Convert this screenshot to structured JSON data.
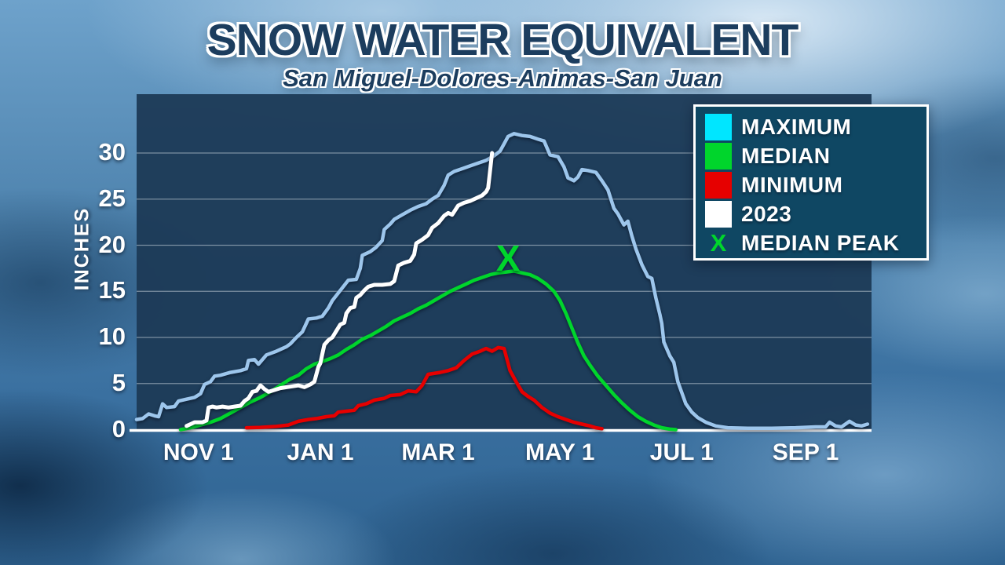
{
  "title": "SNOW WATER EQUIVALENT",
  "subtitle": "San Miguel-Dolores-Animas-San Juan",
  "colors": {
    "title_text": "#1c3d5e",
    "plot_background": "#1c3a56",
    "gridline": "#c9d4dd",
    "axis_baseline": "#ffffff",
    "legend_background": "#0f4763",
    "legend_border": "#ffffff",
    "maximum_swatch": "#00e6ff",
    "maximum_line": "#9dc6ec",
    "median": "#00d52c",
    "minimum": "#e60000",
    "year_2023": "#ffffff"
  },
  "legend": {
    "items": [
      {
        "label": "MAXIMUM",
        "swatch": "square",
        "color": "#00e6ff"
      },
      {
        "label": "MEDIAN",
        "swatch": "square",
        "color": "#00d52c"
      },
      {
        "label": "MINIMUM",
        "swatch": "square",
        "color": "#e60000"
      },
      {
        "label": "2023",
        "swatch": "square",
        "color": "#ffffff"
      },
      {
        "label": "MEDIAN PEAK",
        "swatch": "x",
        "symbol": "X",
        "color": "#00d52c"
      }
    ]
  },
  "chart_data": {
    "type": "line",
    "title": "SNOW WATER EQUIVALENT",
    "subtitle": "San Miguel-Dolores-Animas-San Juan",
    "ylabel": "INCHES",
    "xlabel": "",
    "x_unit": "days since Oct 1 (water year)",
    "x_domain": [
      0,
      368
    ],
    "ylim": [
      0,
      32.5
    ],
    "yticks": [
      0,
      5,
      10,
      15,
      20,
      25,
      30
    ],
    "grid": "horizontal",
    "legend_position": "top-right",
    "xticks": [
      {
        "label": "NOV 1",
        "day": 31
      },
      {
        "label": "JAN 1",
        "day": 92
      },
      {
        "label": "MAR 1",
        "day": 151
      },
      {
        "label": "MAY 1",
        "day": 212
      },
      {
        "label": "JUL 1",
        "day": 273
      },
      {
        "label": "SEP 1",
        "day": 335
      }
    ],
    "series": [
      {
        "name": "MAXIMUM",
        "color": "#9dc6ec",
        "width": 4.5,
        "points": [
          [
            0,
            1.1
          ],
          [
            3,
            1.2
          ],
          [
            6,
            1.7
          ],
          [
            9,
            1.5
          ],
          [
            11,
            1.4
          ],
          [
            13,
            2.8
          ],
          [
            15,
            2.4
          ],
          [
            19,
            2.5
          ],
          [
            21,
            3.1
          ],
          [
            25,
            3.3
          ],
          [
            29,
            3.5
          ],
          [
            32,
            3.9
          ],
          [
            34,
            4.9
          ],
          [
            37,
            5.2
          ],
          [
            39,
            5.8
          ],
          [
            42,
            5.9
          ],
          [
            47,
            6.2
          ],
          [
            52,
            6.4
          ],
          [
            55,
            6.6
          ],
          [
            56,
            7.5
          ],
          [
            59,
            7.6
          ],
          [
            61,
            7.1
          ],
          [
            65,
            8.1
          ],
          [
            70,
            8.5
          ],
          [
            75,
            9.0
          ],
          [
            77,
            9.3
          ],
          [
            80,
            10.0
          ],
          [
            83,
            10.6
          ],
          [
            86,
            12.0
          ],
          [
            90,
            12.1
          ],
          [
            93,
            12.3
          ],
          [
            96,
            13.2
          ],
          [
            98,
            14.0
          ],
          [
            102,
            15.1
          ],
          [
            106,
            16.2
          ],
          [
            110,
            16.3
          ],
          [
            112,
            17.5
          ],
          [
            113,
            18.9
          ],
          [
            117,
            19.3
          ],
          [
            120,
            19.8
          ],
          [
            123,
            20.5
          ],
          [
            124,
            21.7
          ],
          [
            127,
            22.3
          ],
          [
            129,
            22.8
          ],
          [
            133,
            23.3
          ],
          [
            137,
            23.8
          ],
          [
            141,
            24.2
          ],
          [
            145,
            24.5
          ],
          [
            148,
            25.0
          ],
          [
            151,
            25.4
          ],
          [
            154,
            26.5
          ],
          [
            156,
            27.6
          ],
          [
            159,
            28.0
          ],
          [
            163,
            28.3
          ],
          [
            167,
            28.6
          ],
          [
            171,
            28.9
          ],
          [
            175,
            29.2
          ],
          [
            179,
            29.7
          ],
          [
            182,
            30.2
          ],
          [
            184,
            31.0
          ],
          [
            186,
            31.8
          ],
          [
            189,
            32.1
          ],
          [
            193,
            31.9
          ],
          [
            197,
            31.8
          ],
          [
            201,
            31.5
          ],
          [
            204,
            31.3
          ],
          [
            207,
            29.8
          ],
          [
            211,
            29.6
          ],
          [
            214,
            28.5
          ],
          [
            216,
            27.3
          ],
          [
            219,
            27.0
          ],
          [
            221,
            27.4
          ],
          [
            223,
            28.2
          ],
          [
            226,
            28.1
          ],
          [
            230,
            27.9
          ],
          [
            233,
            27.0
          ],
          [
            236,
            26.0
          ],
          [
            239,
            24.0
          ],
          [
            241,
            23.4
          ],
          [
            244,
            22.2
          ],
          [
            246,
            22.6
          ],
          [
            248,
            21.0
          ],
          [
            250,
            19.6
          ],
          [
            253,
            17.9
          ],
          [
            256,
            16.6
          ],
          [
            258,
            16.4
          ],
          [
            260,
            14.3
          ],
          [
            262,
            12.5
          ],
          [
            263,
            11.5
          ],
          [
            264,
            9.5
          ],
          [
            265,
            9.0
          ],
          [
            267,
            8.0
          ],
          [
            269,
            7.3
          ],
          [
            271,
            5.2
          ],
          [
            273,
            4.0
          ],
          [
            275,
            2.8
          ],
          [
            278,
            1.9
          ],
          [
            281,
            1.3
          ],
          [
            285,
            0.8
          ],
          [
            290,
            0.4
          ],
          [
            296,
            0.2
          ],
          [
            306,
            0.15
          ],
          [
            318,
            0.15
          ],
          [
            330,
            0.2
          ],
          [
            340,
            0.3
          ],
          [
            345,
            0.3
          ],
          [
            347,
            0.8
          ],
          [
            350,
            0.4
          ],
          [
            353,
            0.3
          ],
          [
            357,
            0.9
          ],
          [
            360,
            0.5
          ],
          [
            363,
            0.4
          ],
          [
            366,
            0.6
          ]
        ]
      },
      {
        "name": "MEDIAN",
        "color": "#00d52c",
        "width": 4.5,
        "points": [
          [
            22,
            0
          ],
          [
            27,
            0.2
          ],
          [
            32,
            0.5
          ],
          [
            37,
            0.8
          ],
          [
            42,
            1.2
          ],
          [
            47,
            1.8
          ],
          [
            52,
            2.4
          ],
          [
            57,
            3.0
          ],
          [
            62,
            3.5
          ],
          [
            67,
            4.1
          ],
          [
            72,
            4.8
          ],
          [
            77,
            5.5
          ],
          [
            81,
            5.9
          ],
          [
            85,
            6.6
          ],
          [
            89,
            7.1
          ],
          [
            93,
            7.4
          ],
          [
            97,
            7.7
          ],
          [
            101,
            8.1
          ],
          [
            105,
            8.7
          ],
          [
            109,
            9.2
          ],
          [
            113,
            9.8
          ],
          [
            117,
            10.2
          ],
          [
            121,
            10.7
          ],
          [
            125,
            11.2
          ],
          [
            129,
            11.8
          ],
          [
            133,
            12.2
          ],
          [
            137,
            12.6
          ],
          [
            141,
            13.1
          ],
          [
            145,
            13.5
          ],
          [
            149,
            14.0
          ],
          [
            153,
            14.5
          ],
          [
            157,
            15.0
          ],
          [
            161,
            15.4
          ],
          [
            165,
            15.8
          ],
          [
            169,
            16.2
          ],
          [
            173,
            16.5
          ],
          [
            177,
            16.8
          ],
          [
            181,
            17.0
          ],
          [
            185,
            17.1
          ],
          [
            189,
            17.2
          ],
          [
            193,
            17.0
          ],
          [
            197,
            16.8
          ],
          [
            201,
            16.4
          ],
          [
            205,
            15.8
          ],
          [
            209,
            15.0
          ],
          [
            212,
            14.0
          ],
          [
            215,
            12.6
          ],
          [
            218,
            11.0
          ],
          [
            221,
            9.4
          ],
          [
            224,
            8.0
          ],
          [
            227,
            7.0
          ],
          [
            231,
            5.8
          ],
          [
            235,
            4.8
          ],
          [
            239,
            3.8
          ],
          [
            243,
            2.9
          ],
          [
            247,
            2.1
          ],
          [
            251,
            1.4
          ],
          [
            255,
            0.9
          ],
          [
            259,
            0.5
          ],
          [
            263,
            0.2
          ],
          [
            267,
            0.05
          ],
          [
            270,
            0
          ]
        ]
      },
      {
        "name": "MINIMUM",
        "color": "#e60000",
        "width": 4.5,
        "points": [
          [
            55,
            0.2
          ],
          [
            62,
            0.25
          ],
          [
            70,
            0.35
          ],
          [
            76,
            0.5
          ],
          [
            81,
            0.9
          ],
          [
            86,
            1.1
          ],
          [
            90,
            1.2
          ],
          [
            95,
            1.4
          ],
          [
            99,
            1.5
          ],
          [
            101,
            1.9
          ],
          [
            105,
            2.0
          ],
          [
            109,
            2.1
          ],
          [
            111,
            2.6
          ],
          [
            115,
            2.8
          ],
          [
            119,
            3.2
          ],
          [
            124,
            3.4
          ],
          [
            127,
            3.7
          ],
          [
            132,
            3.8
          ],
          [
            136,
            4.2
          ],
          [
            140,
            4.1
          ],
          [
            143,
            4.8
          ],
          [
            146,
            6.0
          ],
          [
            152,
            6.2
          ],
          [
            156,
            6.4
          ],
          [
            160,
            6.7
          ],
          [
            164,
            7.5
          ],
          [
            168,
            8.2
          ],
          [
            172,
            8.5
          ],
          [
            175,
            8.8
          ],
          [
            178,
            8.5
          ],
          [
            181,
            8.9
          ],
          [
            184,
            8.8
          ],
          [
            187,
            6.4
          ],
          [
            190,
            5.2
          ],
          [
            193,
            4.1
          ],
          [
            196,
            3.6
          ],
          [
            199,
            3.2
          ],
          [
            203,
            2.4
          ],
          [
            207,
            1.8
          ],
          [
            211,
            1.4
          ],
          [
            215,
            1.1
          ],
          [
            219,
            0.8
          ],
          [
            223,
            0.6
          ],
          [
            227,
            0.4
          ],
          [
            230,
            0.2
          ],
          [
            233,
            0.1
          ]
        ]
      },
      {
        "name": "2023",
        "color": "#ffffff",
        "width": 5,
        "points": [
          [
            25,
            0.4
          ],
          [
            27,
            0.6
          ],
          [
            29,
            0.8
          ],
          [
            33,
            0.8
          ],
          [
            35,
            1.0
          ],
          [
            36,
            2.4
          ],
          [
            38,
            2.5
          ],
          [
            40,
            2.4
          ],
          [
            43,
            2.5
          ],
          [
            46,
            2.4
          ],
          [
            49,
            2.5
          ],
          [
            52,
            2.6
          ],
          [
            54,
            3.1
          ],
          [
            56,
            3.4
          ],
          [
            58,
            4.1
          ],
          [
            60,
            4.2
          ],
          [
            62,
            4.8
          ],
          [
            64,
            4.4
          ],
          [
            66,
            4.1
          ],
          [
            69,
            4.3
          ],
          [
            72,
            4.5
          ],
          [
            75,
            4.6
          ],
          [
            78,
            4.7
          ],
          [
            81,
            4.8
          ],
          [
            84,
            4.6
          ],
          [
            87,
            4.9
          ],
          [
            89,
            5.2
          ],
          [
            91,
            6.8
          ],
          [
            92,
            7.2
          ],
          [
            93,
            8.2
          ],
          [
            94,
            9.2
          ],
          [
            96,
            9.7
          ],
          [
            98,
            10.0
          ],
          [
            100,
            10.7
          ],
          [
            102,
            11.4
          ],
          [
            104,
            11.6
          ],
          [
            105,
            12.6
          ],
          [
            107,
            13.2
          ],
          [
            109,
            13.3
          ],
          [
            110,
            14.3
          ],
          [
            112,
            14.6
          ],
          [
            114,
            15.1
          ],
          [
            116,
            15.5
          ],
          [
            119,
            15.7
          ],
          [
            123,
            15.7
          ],
          [
            127,
            15.8
          ],
          [
            129,
            16.1
          ],
          [
            131,
            17.8
          ],
          [
            134,
            18.1
          ],
          [
            137,
            18.3
          ],
          [
            139,
            19.0
          ],
          [
            140,
            20.2
          ],
          [
            143,
            20.6
          ],
          [
            146,
            21.1
          ],
          [
            148,
            21.9
          ],
          [
            151,
            22.4
          ],
          [
            154,
            23.2
          ],
          [
            156,
            23.5
          ],
          [
            158,
            23.3
          ],
          [
            161,
            24.3
          ],
          [
            164,
            24.6
          ],
          [
            167,
            24.8
          ],
          [
            170,
            25.1
          ],
          [
            173,
            25.4
          ],
          [
            175,
            25.8
          ],
          [
            176,
            26.2
          ],
          [
            178,
            30.0
          ]
        ]
      }
    ],
    "marker": {
      "label": "MEDIAN PEAK",
      "symbol": "X",
      "color": "#00d52c",
      "day": 186,
      "value": 18.6
    }
  }
}
